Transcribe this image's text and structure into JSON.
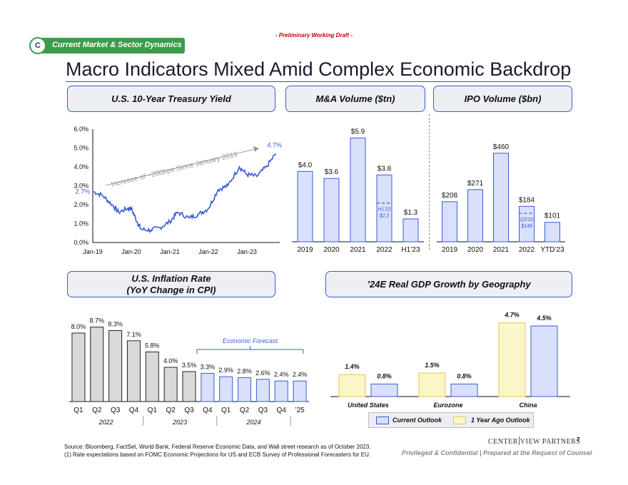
{
  "header": {
    "draft_label": "- Preliminary Working Draft -",
    "section_letter": "C",
    "section_label": "Current Market & Sector Dynamics",
    "title": "Macro Indicators Mixed Amid Complex Economic Backdrop"
  },
  "panels": {
    "treasury": "U.S. 10-Year Treasury Yield",
    "mna": "M&A Volume ($tn)",
    "ipo": "IPO Volume ($bn)",
    "inflation_line1": "U.S. Inflation Rate",
    "inflation_line2": "(YoY Change in CPI)",
    "gdp": "’24E Real GDP Growth by Geography"
  },
  "chart_data": [
    {
      "id": "treasury",
      "type": "line",
      "title": "U.S. 10-Year Treasury Yield",
      "y_ticks": [
        "6.0%",
        "5.0%",
        "4.0%",
        "3.0%",
        "2.0%",
        "1.0%",
        "0.0%"
      ],
      "x_ticks": [
        "Jan-19",
        "Jan-20",
        "Jan-21",
        "Jan-22",
        "Jan-23"
      ],
      "ylim": [
        0,
        6
      ],
      "x": [
        2019.0,
        2019.25,
        2019.5,
        2019.67,
        2019.9,
        2020.0,
        2020.15,
        2020.25,
        2020.5,
        2020.75,
        2021.0,
        2021.2,
        2021.5,
        2021.75,
        2022.0,
        2022.25,
        2022.5,
        2022.8,
        2023.0,
        2023.25,
        2023.5,
        2023.75
      ],
      "y": [
        2.7,
        2.5,
        2.0,
        1.6,
        1.8,
        1.8,
        1.1,
        0.7,
        0.65,
        0.8,
        1.1,
        1.6,
        1.3,
        1.5,
        1.8,
        2.8,
        3.0,
        4.0,
        3.6,
        3.5,
        4.0,
        4.7
      ],
      "start_label": "2.7%",
      "end_label": "4.7%",
      "annotation": "Increase of ~200bps Since January 2019"
    },
    {
      "id": "mna",
      "type": "bar",
      "title": "M&A Volume ($tn)",
      "categories": [
        "2019",
        "2020",
        "2021",
        "2022",
        "H1’23"
      ],
      "values": [
        4.0,
        3.6,
        5.9,
        3.8,
        1.3
      ],
      "labels": [
        "$4.0",
        "$3.6",
        "$5.9",
        "$3.8",
        "$1.3"
      ],
      "ylim": [
        0,
        6
      ],
      "marker": {
        "category": "2022",
        "value": 2.2,
        "label_line1": "H1’22",
        "label_line2": "$2.2"
      }
    },
    {
      "id": "ipo",
      "type": "bar",
      "title": "IPO Volume ($bn)",
      "categories": [
        "2019",
        "2020",
        "2021",
        "2022",
        "YTD’23"
      ],
      "values": [
        208,
        271,
        460,
        184,
        101
      ],
      "labels": [
        "$208",
        "$271",
        "$460",
        "$184",
        "$101"
      ],
      "ylim": [
        0,
        500
      ],
      "marker": {
        "category": "2022",
        "value": 148,
        "label_line1": "Q3’22",
        "label_line2": "$148"
      }
    },
    {
      "id": "inflation",
      "type": "bar",
      "title": "U.S. Inflation Rate (YoY Change in CPI)",
      "categories": [
        "Q1",
        "Q2",
        "Q3",
        "Q4",
        "Q1",
        "Q2",
        "Q3",
        "Q4",
        "Q1",
        "Q2",
        "Q3",
        "Q4",
        "’25"
      ],
      "values": [
        8.0,
        8.7,
        8.3,
        7.1,
        5.8,
        4.0,
        3.5,
        3.3,
        2.9,
        2.8,
        2.6,
        2.4,
        2.4
      ],
      "labels": [
        "8.0%",
        "8.7%",
        "8.3%",
        "7.1%",
        "5.8%",
        "4.0%",
        "3.5%",
        "3.3%",
        "2.9%",
        "2.8%",
        "2.6%",
        "2.4%",
        "2.4%"
      ],
      "forecast_from_index": 7,
      "forecast_label": "Economic Forecast",
      "year_labels": [
        "2022",
        "2023",
        "2024"
      ],
      "ylim": [
        0,
        10
      ]
    },
    {
      "id": "gdp",
      "type": "bar",
      "title": "’24E Real GDP Growth by Geography",
      "categories": [
        "United States",
        "Eurozone",
        "China"
      ],
      "series": [
        {
          "name": "1 Year Ago Outlook",
          "values": [
            1.4,
            1.5,
            4.7
          ],
          "labels": [
            "1.4%",
            "1.5%",
            "4.7%"
          ],
          "color": "#fbf6c9"
        },
        {
          "name": "Current Outlook",
          "values": [
            0.8,
            0.8,
            4.5
          ],
          "labels": [
            "0.8%",
            "0.8%",
            "4.5%"
          ],
          "color": "#d9e0fb"
        }
      ],
      "ylim": [
        0,
        5
      ]
    }
  ],
  "legend": {
    "current": "Current Outlook",
    "year_ago": "1 Year Ago Outlook"
  },
  "colors": {
    "accent": "#3b5bd6",
    "bar_fill": "#d9e0fb",
    "bar_grey": "#d9d9d9",
    "yellow": "#fbf6c9",
    "yellow_border": "#e5c84a",
    "green": "#3c9c4c"
  },
  "footer": {
    "source": "Source:  Bloomberg, FactSet, World Bank, Federal Reserve Economic Data, and Wall street research as of October 2023.",
    "note": "(1)       Rate expectations based on FOMC Economic Projections for US and ECB Survey of Professional Forecasters for EU.",
    "brand_left": "CENTER",
    "brand_right": "VIEW PARTNERS",
    "page_number": "7",
    "confidential": "Privileged & Confidential | Prepared at the Request of Counsel"
  }
}
